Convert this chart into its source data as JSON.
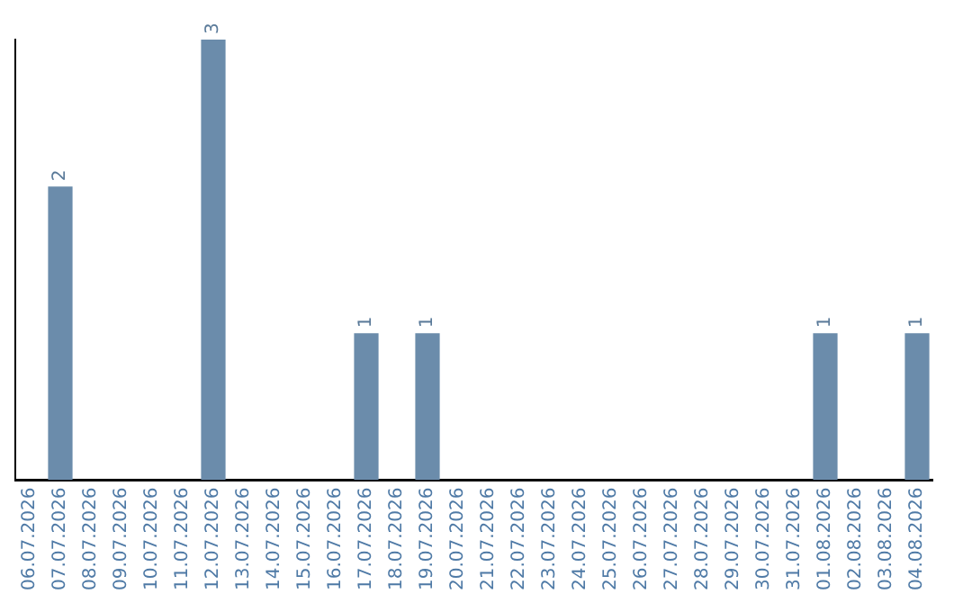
{
  "chart_data": {
    "type": "bar",
    "categories": [
      "06.07.2026",
      "07.07.2026",
      "08.07.2026",
      "09.07.2026",
      "10.07.2026",
      "11.07.2026",
      "12.07.2026",
      "13.07.2026",
      "14.07.2026",
      "15.07.2026",
      "16.07.2026",
      "17.07.2026",
      "18.07.2026",
      "19.07.2026",
      "20.07.2026",
      "21.07.2026",
      "22.07.2026",
      "23.07.2026",
      "24.07.2026",
      "25.07.2026",
      "26.07.2026",
      "27.07.2026",
      "28.07.2026",
      "29.07.2026",
      "30.07.2026",
      "31.07.2026",
      "01.08.2026",
      "02.08.2026",
      "03.08.2026",
      "04.08.2026"
    ],
    "values": [
      0,
      2,
      0,
      0,
      0,
      0,
      3,
      0,
      0,
      0,
      0,
      1,
      0,
      1,
      0,
      0,
      0,
      0,
      0,
      0,
      0,
      0,
      0,
      0,
      0,
      0,
      1,
      0,
      0,
      1
    ],
    "value_labels": [
      null,
      "2",
      null,
      null,
      null,
      null,
      "3",
      null,
      null,
      null,
      null,
      "1",
      null,
      "1",
      null,
      null,
      null,
      null,
      null,
      null,
      null,
      null,
      null,
      null,
      null,
      null,
      "1",
      null,
      null,
      "1"
    ],
    "color": "#6b8cab",
    "grid": false,
    "legend": false,
    "tick_labels": "x"
  }
}
